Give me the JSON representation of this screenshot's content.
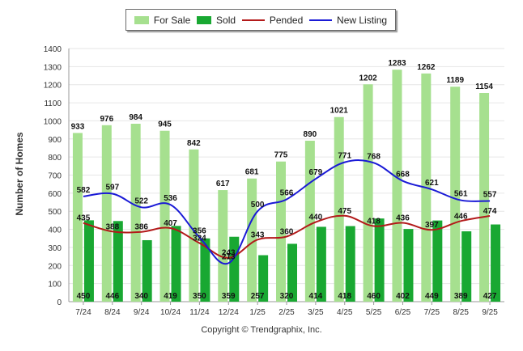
{
  "chart_data": {
    "type": "bar",
    "title": "",
    "xlabel": "",
    "ylabel": "Number of Homes",
    "ylim": [
      0,
      1400
    ],
    "yticks": [
      0,
      100,
      200,
      300,
      400,
      500,
      600,
      700,
      800,
      900,
      1000,
      1100,
      1200,
      1300,
      1400
    ],
    "categories": [
      "7/24",
      "8/24",
      "9/24",
      "10/24",
      "11/24",
      "12/24",
      "1/25",
      "2/25",
      "3/25",
      "4/25",
      "5/25",
      "6/25",
      "7/25",
      "8/25",
      "9/25"
    ],
    "series": [
      {
        "name": "For Sale",
        "kind": "bar",
        "color": "#a6e08f",
        "values": [
          933,
          976,
          984,
          945,
          842,
          617,
          681,
          775,
          890,
          1021,
          1202,
          1283,
          1262,
          1189,
          1154
        ]
      },
      {
        "name": "Sold",
        "kind": "bar",
        "color": "#19a832",
        "values": [
          450,
          446,
          340,
          419,
          350,
          359,
          257,
          320,
          414,
          418,
          460,
          402,
          449,
          389,
          427
        ]
      },
      {
        "name": "Pended",
        "kind": "line",
        "color": "#b31a1a",
        "values": [
          435,
          388,
          386,
          407,
          324,
          243,
          343,
          360,
          440,
          475,
          418,
          436,
          397,
          446,
          474
        ]
      },
      {
        "name": "New Listing",
        "kind": "line",
        "color": "#1a1ad6",
        "values": [
          582,
          597,
          522,
          536,
          356,
          213,
          500,
          566,
          679,
          771,
          768,
          668,
          621,
          561,
          557
        ]
      }
    ],
    "legend": {
      "position": "top"
    }
  },
  "footer": {
    "copyright": "Copyright © Trendgraphix, Inc."
  }
}
